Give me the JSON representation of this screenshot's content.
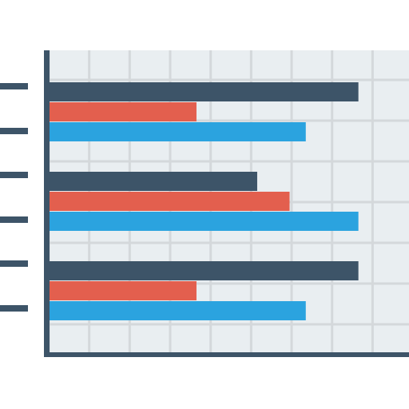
{
  "chart_data": {
    "type": "bar",
    "orientation": "horizontal",
    "categories": [
      null,
      null,
      null
    ],
    "series": [
      {
        "color": "#3d5468",
        "values": [
          7.65,
          5.15,
          7.65
        ]
      },
      {
        "color": "#e35f4e",
        "values": [
          3.65,
          5.95,
          3.65
        ]
      },
      {
        "color": "#2ba3df",
        "values": [
          6.35,
          7.65,
          6.35
        ]
      }
    ],
    "xlim": [
      0,
      8.9
    ],
    "xticks": [
      0,
      1,
      2,
      3,
      4,
      5,
      6,
      7,
      8
    ],
    "grid": true
  }
}
